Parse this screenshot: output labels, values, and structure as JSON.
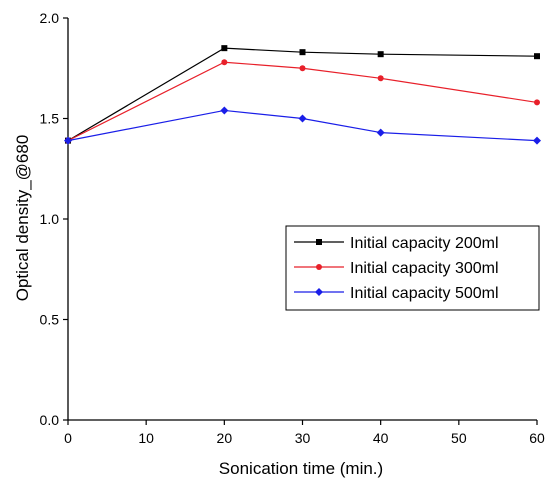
{
  "chart_data": {
    "type": "line",
    "title": "",
    "xlabel": "Sonication time (min.)",
    "ylabel": "Optical density_@680",
    "xlim": [
      0,
      60
    ],
    "ylim": [
      0.0,
      2.0
    ],
    "x_ticks": [
      0,
      10,
      20,
      30,
      40,
      50,
      60
    ],
    "x_tick_labels": [
      "0",
      "10",
      "20",
      "30",
      "40",
      "50",
      "60"
    ],
    "y_ticks": [
      0.0,
      0.5,
      1.0,
      1.5,
      2.0
    ],
    "y_tick_labels": [
      "0.0",
      "0.5",
      "1.0",
      "1.5",
      "2.0"
    ],
    "x": [
      0,
      20,
      30,
      40,
      60
    ],
    "series": [
      {
        "name": "Initial capacity 200ml",
        "values": [
          1.39,
          1.85,
          1.83,
          1.82,
          1.81
        ],
        "color": "#000000",
        "marker": "square"
      },
      {
        "name": "Initial capacity 300ml",
        "values": [
          1.39,
          1.78,
          1.75,
          1.7,
          1.58
        ],
        "color": "#e8202a",
        "marker": "circle"
      },
      {
        "name": "Initial capacity 500ml",
        "values": [
          1.39,
          1.54,
          1.5,
          1.43,
          1.39
        ],
        "color": "#1a1ee8",
        "marker": "diamond"
      }
    ],
    "grid": false,
    "legend_position": "center-right"
  }
}
